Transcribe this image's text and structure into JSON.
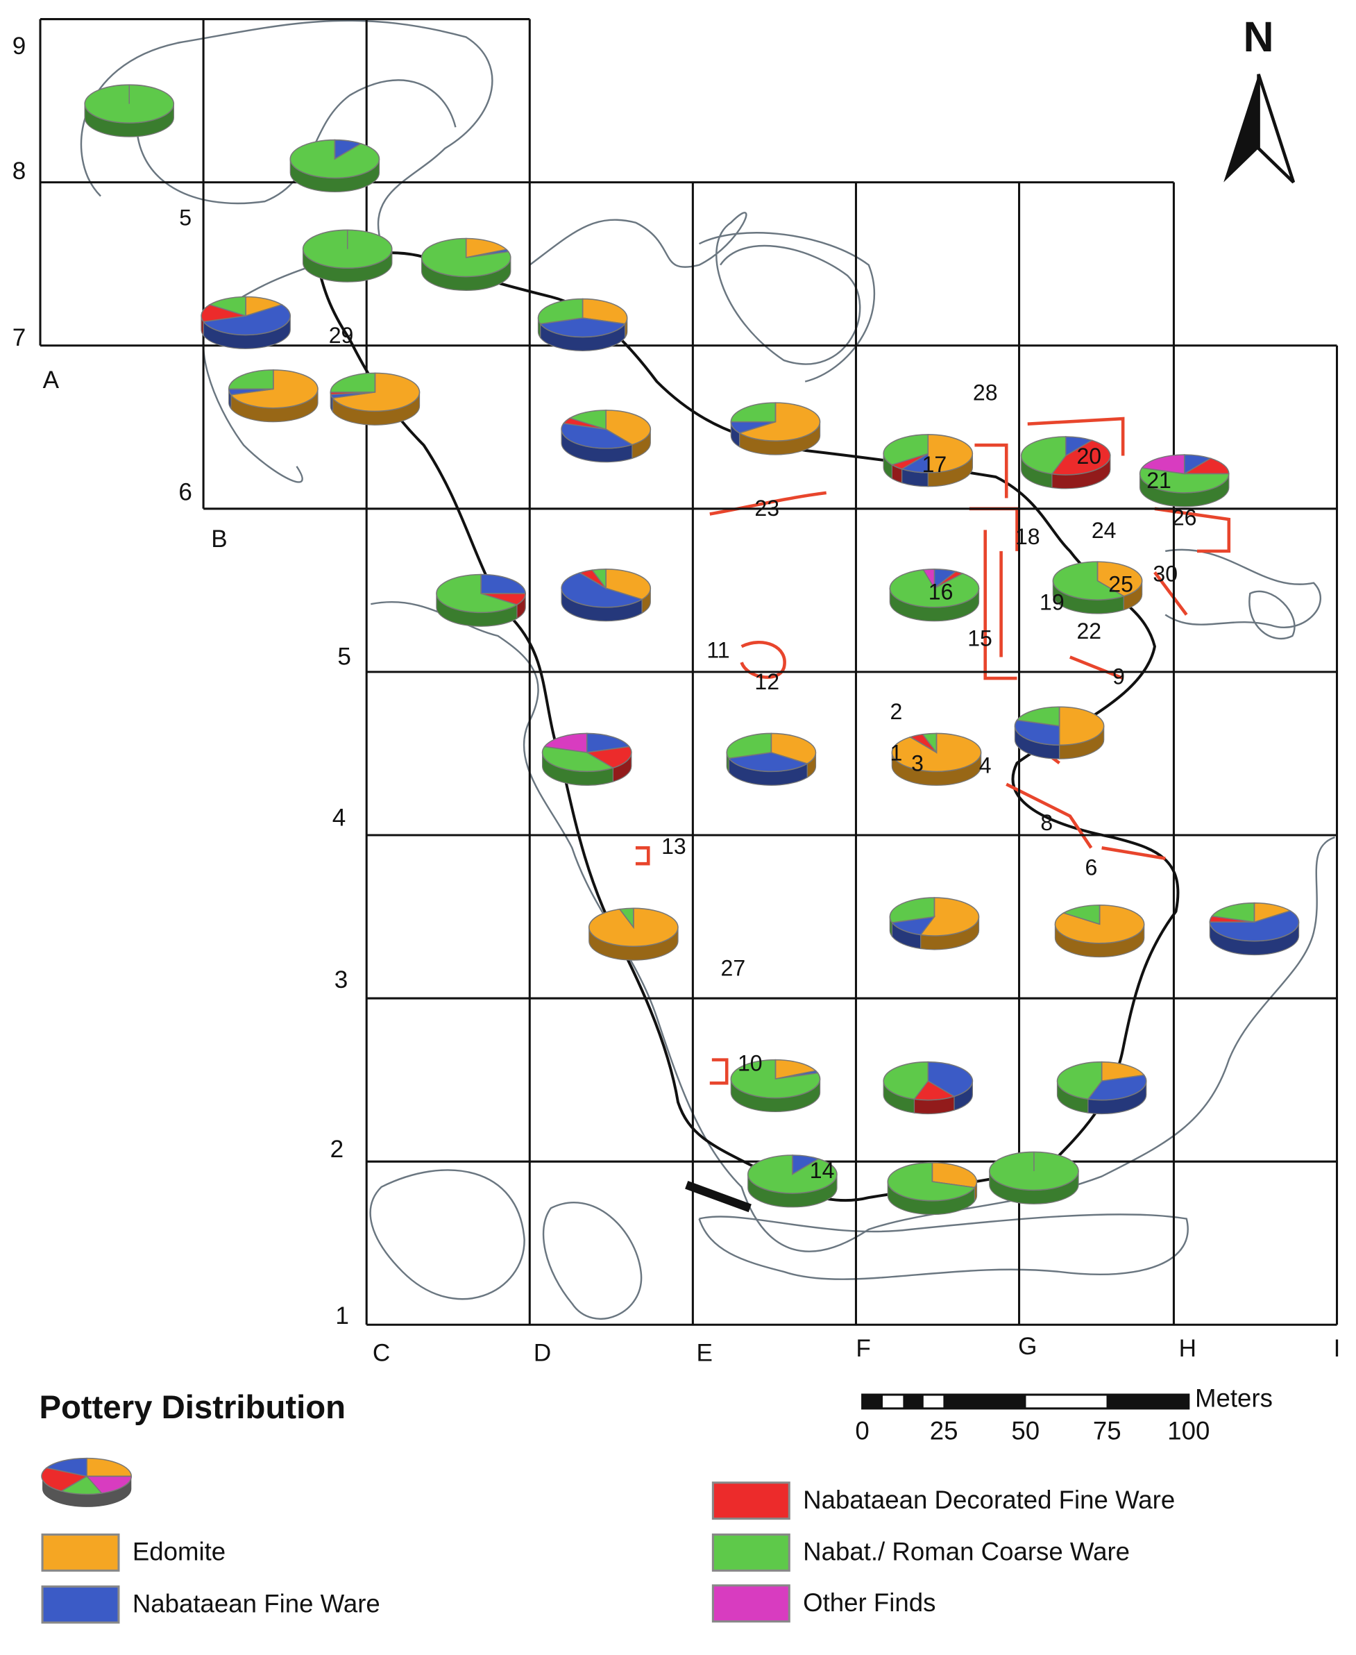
{
  "north": "N",
  "grid": {
    "rows": [
      "1",
      "2",
      "3",
      "4",
      "5",
      "6",
      "7",
      "8",
      "9"
    ],
    "columns": [
      "A",
      "B",
      "C",
      "D",
      "E",
      "F",
      "G",
      "H",
      "I"
    ]
  },
  "features": [
    "1",
    "2",
    "3",
    "4",
    "5",
    "6",
    "8",
    "9",
    "10",
    "11",
    "12",
    "13",
    "14",
    "15",
    "16",
    "17",
    "18",
    "19",
    "20",
    "21",
    "22",
    "23",
    "24",
    "25",
    "26",
    "27",
    "28",
    "29",
    "30"
  ],
  "legend": {
    "title": "Pottery Distribution",
    "categories": [
      {
        "name": "Edomite",
        "color": "#f5a623"
      },
      {
        "name": "Nabataean Fine Ware",
        "color": "#3b5bc6"
      },
      {
        "name": "Nabataean Decorated Fine Ware",
        "color": "#ec2b2b"
      },
      {
        "name": "Nabat./ Roman Coarse Ware",
        "color": "#5ec94a"
      },
      {
        "name": "Other Finds",
        "color": "#d83cc0"
      }
    ]
  },
  "pies": [
    [
      0,
      0,
      0,
      100,
      0
    ],
    [
      0,
      10,
      0,
      90,
      0
    ],
    [
      0,
      0,
      0,
      100,
      0
    ],
    [
      18,
      2,
      0,
      80,
      0
    ],
    [
      15,
      55,
      15,
      15,
      0
    ],
    [
      30,
      40,
      0,
      30,
      0
    ],
    [
      70,
      5,
      0,
      25,
      0
    ],
    [
      70,
      3,
      2,
      25,
      0
    ],
    [
      40,
      40,
      5,
      15,
      0
    ],
    [
      65,
      10,
      0,
      25,
      0
    ],
    [
      50,
      10,
      5,
      35,
      0
    ],
    [
      0,
      10,
      45,
      45,
      0
    ],
    [
      0,
      10,
      15,
      55,
      20
    ],
    [
      0,
      25,
      10,
      65,
      0
    ],
    [
      35,
      55,
      5,
      5,
      0
    ],
    [
      0,
      8,
      3,
      85,
      4
    ],
    [
      40,
      0,
      0,
      60,
      0
    ],
    [
      0,
      20,
      20,
      40,
      20
    ],
    [
      35,
      35,
      0,
      30,
      0
    ],
    [
      90,
      0,
      5,
      5,
      0
    ],
    [
      50,
      30,
      0,
      20,
      0
    ],
    [
      95,
      0,
      0,
      5,
      0
    ],
    [
      55,
      15,
      0,
      30,
      0
    ],
    [
      85,
      0,
      0,
      15,
      0
    ],
    [
      15,
      60,
      5,
      20,
      0
    ],
    [
      18,
      2,
      0,
      80,
      0
    ],
    [
      0,
      40,
      15,
      45,
      0
    ],
    [
      20,
      35,
      0,
      45,
      0
    ],
    [
      0,
      10,
      0,
      90,
      0
    ],
    [
      30,
      0,
      0,
      70,
      0
    ],
    [
      0,
      0,
      0,
      100,
      0
    ]
  ],
  "scale": {
    "unit": "Meters",
    "ticks": [
      0,
      25,
      50,
      75,
      100
    ]
  }
}
